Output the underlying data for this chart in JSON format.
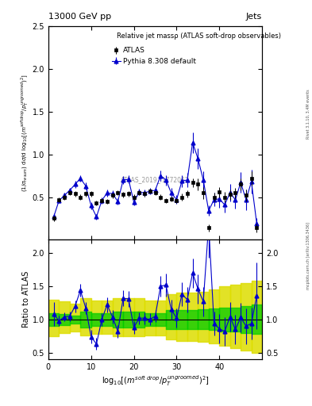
{
  "title_left": "13000 GeV pp",
  "title_right": "Jets",
  "right_label_top": "Rivet 3.1.10, 3.4M events",
  "right_label_bot": "mcplots.cern.ch [arXiv:1306.3436]",
  "watermark": "ATLAS_2019_I1772062",
  "plot_title": "Relative jet massρ (ATLAS soft-drop observables)",
  "ylabel_main": "$(1/\\sigma_{resum})$ d$\\sigma$/d log$_{10}$[$(m^{soft drop}/p_T^{ungroomed})^2$]",
  "ylabel_ratio": "Ratio to ATLAS",
  "xlabel": "log$_{10}$[$(m^{soft drop}/p_T^{ungroomed})^2$]",
  "xlim": [
    0,
    50
  ],
  "ylim_main": [
    0,
    2.5
  ],
  "ylim_ratio": [
    0.4,
    2.2
  ],
  "yticks_main": [
    0.5,
    1.0,
    1.5,
    2.0,
    2.5
  ],
  "yticks_ratio": [
    0.5,
    1.0,
    1.5,
    2.0
  ],
  "xticks": [
    0,
    10,
    20,
    30,
    40
  ],
  "atlas_x": [
    1.25,
    2.5,
    3.75,
    5.0,
    6.25,
    7.5,
    8.75,
    10.0,
    11.25,
    12.5,
    13.75,
    15.0,
    16.25,
    17.5,
    18.75,
    20.0,
    21.25,
    22.5,
    23.75,
    25.0,
    26.25,
    27.5,
    28.75,
    30.0,
    31.25,
    32.5,
    33.75,
    35.0,
    36.25,
    37.5,
    38.75,
    40.0,
    41.25,
    42.5,
    43.75,
    45.0,
    46.25,
    47.5,
    48.75
  ],
  "atlas_y": [
    0.25,
    0.47,
    0.5,
    0.55,
    0.54,
    0.5,
    0.54,
    0.54,
    0.43,
    0.46,
    0.45,
    0.52,
    0.55,
    0.53,
    0.54,
    0.5,
    0.55,
    0.54,
    0.57,
    0.55,
    0.5,
    0.46,
    0.48,
    0.46,
    0.5,
    0.54,
    0.67,
    0.65,
    0.55,
    0.14,
    0.5,
    0.56,
    0.5,
    0.53,
    0.55,
    0.65,
    0.52,
    0.72,
    0.14
  ],
  "atlas_yerr": [
    0.03,
    0.03,
    0.03,
    0.03,
    0.03,
    0.03,
    0.03,
    0.03,
    0.03,
    0.03,
    0.03,
    0.03,
    0.03,
    0.03,
    0.03,
    0.03,
    0.03,
    0.03,
    0.03,
    0.03,
    0.03,
    0.03,
    0.03,
    0.03,
    0.04,
    0.04,
    0.05,
    0.07,
    0.07,
    0.04,
    0.05,
    0.06,
    0.06,
    0.06,
    0.06,
    0.07,
    0.07,
    0.08,
    0.05
  ],
  "pythia_x": [
    1.25,
    2.5,
    3.75,
    5.0,
    6.25,
    7.5,
    8.75,
    10.0,
    11.25,
    12.5,
    13.75,
    15.0,
    16.25,
    17.5,
    18.75,
    20.0,
    21.25,
    22.5,
    23.75,
    25.0,
    26.25,
    27.5,
    28.75,
    30.0,
    31.25,
    32.5,
    33.75,
    35.0,
    36.25,
    37.5,
    38.75,
    40.0,
    41.25,
    42.5,
    43.75,
    45.0,
    46.25,
    47.5,
    48.75
  ],
  "pythia_y": [
    0.27,
    0.46,
    0.52,
    0.58,
    0.65,
    0.72,
    0.63,
    0.4,
    0.27,
    0.46,
    0.55,
    0.54,
    0.45,
    0.7,
    0.71,
    0.44,
    0.56,
    0.55,
    0.57,
    0.58,
    0.75,
    0.7,
    0.55,
    0.47,
    0.69,
    0.7,
    1.14,
    0.95,
    0.7,
    0.34,
    0.47,
    0.48,
    0.41,
    0.55,
    0.47,
    0.67,
    0.47,
    0.68,
    0.19
  ],
  "pythia_yerr": [
    0.04,
    0.03,
    0.03,
    0.03,
    0.04,
    0.04,
    0.04,
    0.04,
    0.03,
    0.04,
    0.04,
    0.04,
    0.04,
    0.05,
    0.05,
    0.04,
    0.04,
    0.04,
    0.04,
    0.04,
    0.06,
    0.06,
    0.06,
    0.05,
    0.07,
    0.08,
    0.12,
    0.12,
    0.1,
    0.06,
    0.08,
    0.1,
    0.09,
    0.1,
    0.1,
    0.12,
    0.12,
    0.14,
    0.06
  ],
  "ratio_y": [
    1.08,
    0.98,
    1.04,
    1.05,
    1.2,
    1.44,
    1.17,
    0.74,
    0.63,
    1.0,
    1.22,
    1.04,
    0.82,
    1.32,
    1.31,
    0.88,
    1.02,
    1.02,
    1.0,
    1.05,
    1.5,
    1.52,
    1.15,
    1.02,
    1.38,
    1.3,
    1.7,
    1.46,
    1.27,
    2.43,
    0.94,
    0.86,
    0.82,
    1.04,
    0.85,
    1.03,
    0.9,
    0.94,
    1.36
  ],
  "ratio_yerr": [
    0.18,
    0.08,
    0.07,
    0.07,
    0.09,
    0.1,
    0.09,
    0.1,
    0.09,
    0.1,
    0.11,
    0.1,
    0.1,
    0.12,
    0.12,
    0.1,
    0.09,
    0.09,
    0.09,
    0.09,
    0.15,
    0.17,
    0.15,
    0.14,
    0.18,
    0.19,
    0.22,
    0.22,
    0.22,
    0.5,
    0.18,
    0.22,
    0.22,
    0.22,
    0.22,
    0.22,
    0.27,
    0.24,
    0.5
  ],
  "band_edges": [
    0.0,
    2.5,
    5.0,
    7.5,
    10.0,
    12.5,
    15.0,
    17.5,
    20.0,
    22.5,
    25.0,
    27.5,
    30.0,
    32.5,
    35.0,
    37.5,
    40.0,
    42.5,
    45.0,
    47.5,
    50.0
  ],
  "green_band_lo": [
    0.9,
    0.92,
    0.94,
    0.88,
    0.9,
    0.9,
    0.88,
    0.88,
    0.88,
    0.9,
    0.9,
    0.86,
    0.86,
    0.86,
    0.85,
    0.84,
    0.82,
    0.82,
    0.8,
    0.78
  ],
  "green_band_hi": [
    1.1,
    1.08,
    1.06,
    1.12,
    1.1,
    1.1,
    1.12,
    1.12,
    1.12,
    1.1,
    1.1,
    1.14,
    1.14,
    1.14,
    1.15,
    1.16,
    1.18,
    1.18,
    1.2,
    1.22
  ],
  "yellow_band_lo": [
    0.75,
    0.79,
    0.82,
    0.76,
    0.78,
    0.78,
    0.75,
    0.75,
    0.75,
    0.76,
    0.76,
    0.7,
    0.68,
    0.68,
    0.67,
    0.64,
    0.6,
    0.57,
    0.53,
    0.5
  ],
  "yellow_band_hi": [
    1.3,
    1.27,
    1.24,
    1.32,
    1.28,
    1.28,
    1.32,
    1.32,
    1.32,
    1.28,
    1.28,
    1.38,
    1.4,
    1.4,
    1.42,
    1.45,
    1.5,
    1.52,
    1.55,
    1.58
  ],
  "atlas_color": "black",
  "pythia_color": "#0000cc",
  "green_color": "#00cc00",
  "yellow_color": "#dddd00",
  "legend_atlas": "ATLAS",
  "legend_pythia": "Pythia 8.308 default"
}
